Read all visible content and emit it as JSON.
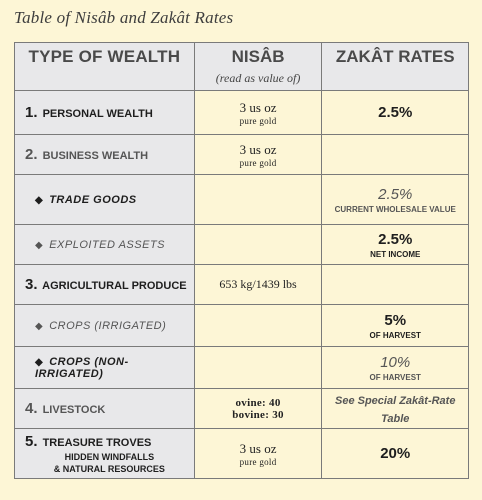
{
  "caption": "Table of Nisâb and Zakât Rates",
  "headers": {
    "wealth": "TYPE OF WEALTH",
    "nisab": "NISÂB",
    "nisab_sub": "(read as value of)",
    "rates": "ZAKÂT RATES"
  },
  "rows": [
    {
      "num": "1.",
      "label": "Personal Wealth",
      "nisab_line1": "3 us oz",
      "nisab_line2": "pure gold",
      "rate": "2.5%",
      "rate_note": ""
    },
    {
      "num": "2.",
      "label": "Business Wealth",
      "nisab_line1": "3 us oz",
      "nisab_line2": "pure gold",
      "rate": "",
      "rate_note": ""
    },
    {
      "label": "Trade Goods",
      "rate": "2.5%",
      "rate_note": "Current wholesale value"
    },
    {
      "label": "Exploited Assets",
      "rate": "2.5%",
      "rate_note": "Net income"
    },
    {
      "num": "3.",
      "label": "Agricultural Produce",
      "nisab_line1": "653 kg/1439 lbs",
      "rate": "",
      "rate_note": ""
    },
    {
      "label": "Crops (Irrigated)",
      "rate": "5%",
      "rate_note": "of harvest"
    },
    {
      "label": "Crops (Non-irrigated)",
      "rate": "10%",
      "rate_note": "of harvest"
    },
    {
      "num": "4.",
      "label": "Livestock",
      "nisab_line1": "ovine: 40",
      "nisab_line2": "bovine: 30",
      "rate_note": "See Special Zakât-Rate Table"
    },
    {
      "num": "5.",
      "label": "Treasure Troves",
      "label_extra1": "hidden windfalls",
      "label_extra2": "& natural resources",
      "nisab_line1": "3 us oz",
      "nisab_line2": "pure gold",
      "rate": "20%"
    }
  ]
}
